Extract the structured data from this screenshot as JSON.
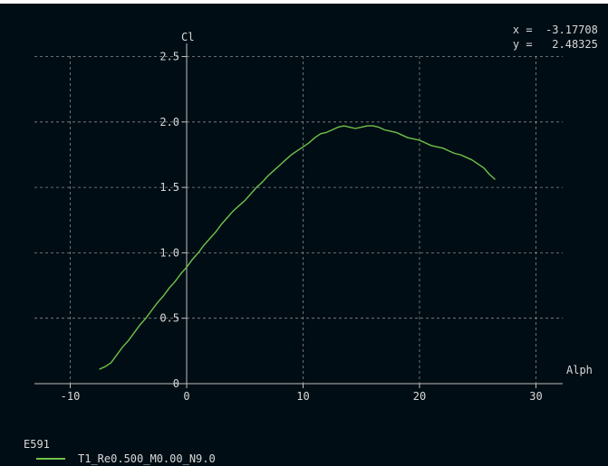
{
  "readout": {
    "x_label": "x =",
    "x_value": "-3.17708",
    "y_label": "y =",
    "y_value": "2.48325"
  },
  "legend": {
    "group": "E591",
    "entries": [
      {
        "name": "T1_Re0.500_M0.00_N9.0",
        "color": "#6fc34a"
      }
    ]
  },
  "chart_data": {
    "type": "line",
    "title": "",
    "xlabel": "Alph",
    "ylabel": "Cl",
    "xlim": [
      -13,
      32
    ],
    "ylim": [
      0,
      2.6
    ],
    "x_ticks": [
      "-10",
      "0",
      "10",
      "20",
      "30"
    ],
    "x_tick_values": [
      -10,
      0,
      10,
      20,
      30
    ],
    "y_ticks": [
      "0",
      "0.5",
      "1.0",
      "1.5",
      "2.0",
      "2.5"
    ],
    "y_tick_values": [
      0,
      0.5,
      1.0,
      1.5,
      2.0,
      2.5
    ],
    "grid": true,
    "colors": {
      "background": "#000d14",
      "axis": "#bfbfbf",
      "grid": "#8a8a8a",
      "text": "#d8d8d8"
    },
    "series": [
      {
        "name": "T1_Re0.500_M0.00_N9.0",
        "color": "#6fc34a",
        "x": [
          -7.5,
          -7.0,
          -6.5,
          -6.0,
          -5.5,
          -5.0,
          -4.5,
          -4.0,
          -3.5,
          -3.0,
          -2.5,
          -2.0,
          -1.5,
          -1.0,
          -0.5,
          0.0,
          0.5,
          1.0,
          1.5,
          2.0,
          2.5,
          3.0,
          3.5,
          4.0,
          4.5,
          5.0,
          5.5,
          6.0,
          6.5,
          7.0,
          7.5,
          8.0,
          8.5,
          9.0,
          9.5,
          10.0,
          10.5,
          11.0,
          11.5,
          12.0,
          12.5,
          13.0,
          13.5,
          14.0,
          14.5,
          15.0,
          15.5,
          16.0,
          16.5,
          17.0,
          17.5,
          18.0,
          18.5,
          19.0,
          19.5,
          20.0,
          20.5,
          21.0,
          21.5,
          22.0,
          22.5,
          23.0,
          23.5,
          24.0,
          24.5,
          25.0,
          25.5,
          26.0,
          26.5
        ],
        "y": [
          0.11,
          0.13,
          0.16,
          0.22,
          0.28,
          0.33,
          0.39,
          0.45,
          0.5,
          0.56,
          0.62,
          0.67,
          0.73,
          0.78,
          0.84,
          0.89,
          0.95,
          1.0,
          1.06,
          1.11,
          1.16,
          1.22,
          1.27,
          1.32,
          1.36,
          1.4,
          1.45,
          1.5,
          1.54,
          1.59,
          1.63,
          1.67,
          1.71,
          1.75,
          1.78,
          1.81,
          1.84,
          1.88,
          1.91,
          1.92,
          1.94,
          1.96,
          1.97,
          1.96,
          1.95,
          1.96,
          1.97,
          1.97,
          1.96,
          1.94,
          1.93,
          1.92,
          1.9,
          1.88,
          1.87,
          1.86,
          1.84,
          1.82,
          1.81,
          1.8,
          1.78,
          1.76,
          1.75,
          1.73,
          1.71,
          1.68,
          1.65,
          1.6,
          1.56
        ]
      }
    ]
  }
}
